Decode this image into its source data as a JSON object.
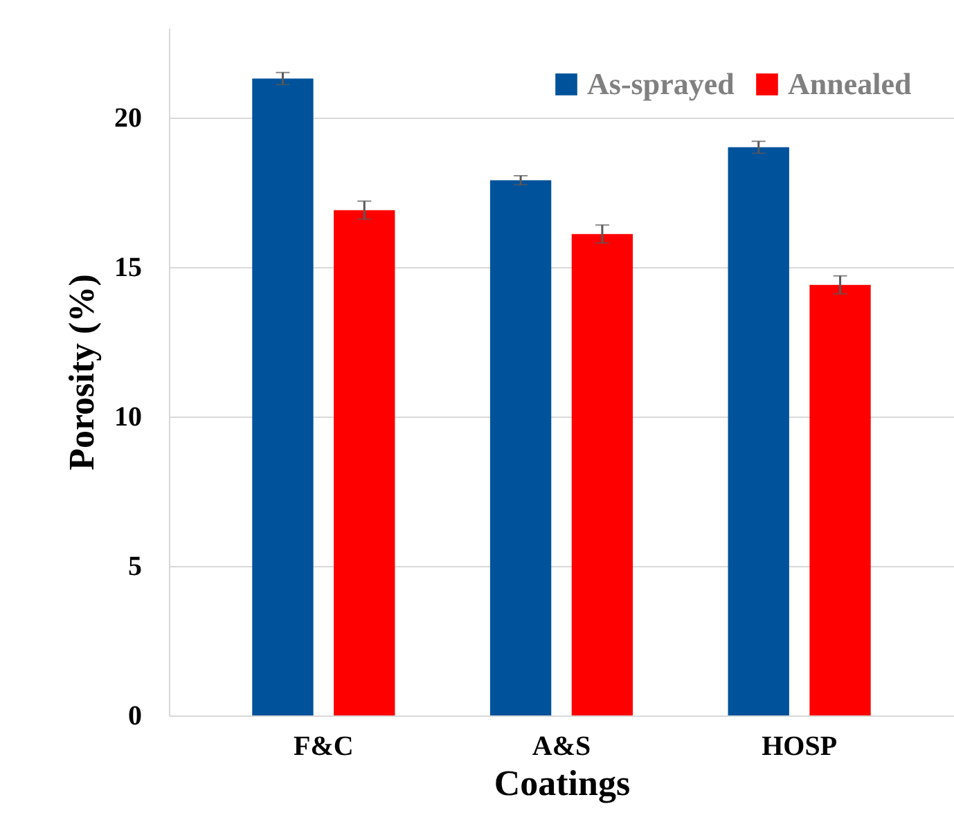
{
  "chart_data": {
    "type": "bar",
    "xlabel": "Coatings",
    "ylabel": "Porosity (%)",
    "categories": [
      "F&C",
      "A&S",
      "HOSP"
    ],
    "series": [
      {
        "name": "As-sprayed",
        "color": "#00529b",
        "values": [
          21.3,
          17.9,
          19.0
        ],
        "errors": [
          0.2,
          0.15,
          0.2
        ]
      },
      {
        "name": "Annealed",
        "color": "#ff0000",
        "values": [
          16.9,
          16.1,
          14.4
        ],
        "errors": [
          0.3,
          0.3,
          0.3
        ]
      }
    ],
    "ylim": [
      0,
      23
    ],
    "yticks": [
      0,
      5,
      10,
      15,
      20
    ],
    "grid": "y",
    "legend": "top right"
  }
}
